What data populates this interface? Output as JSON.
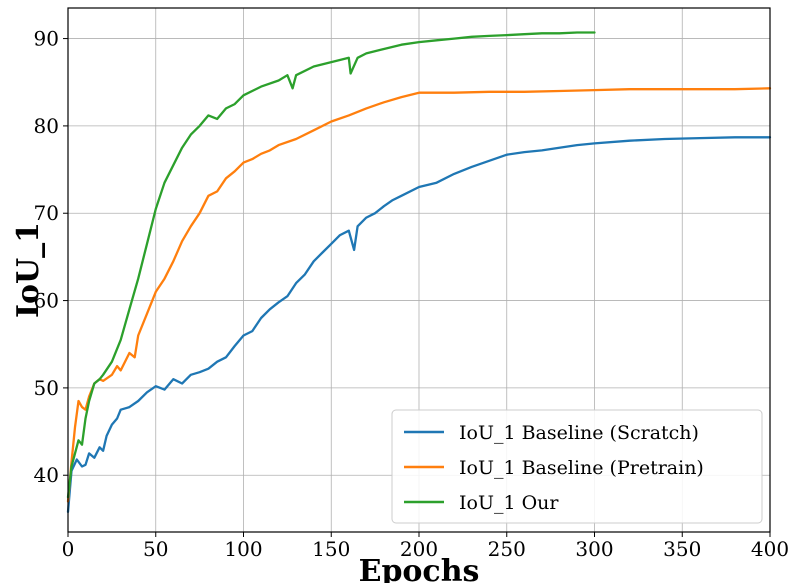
{
  "chart_data": {
    "type": "line",
    "title": "",
    "xlabel": "Epochs",
    "ylabel": "IoU_1",
    "xlim": [
      0,
      400
    ],
    "ylim": [
      33.5,
      93.5
    ],
    "xticks": [
      0,
      50,
      100,
      150,
      200,
      250,
      300,
      350,
      400
    ],
    "yticks": [
      40,
      50,
      60,
      70,
      80,
      90
    ],
    "grid": true,
    "legend_position": "lower-right",
    "series": [
      {
        "name": "IoU_1 Baseline (Scratch)",
        "color": "#1f77b4",
        "x": [
          0,
          2,
          5,
          8,
          10,
          12,
          15,
          18,
          20,
          22,
          25,
          28,
          30,
          35,
          40,
          45,
          50,
          55,
          60,
          65,
          70,
          75,
          80,
          85,
          90,
          95,
          100,
          105,
          110,
          115,
          120,
          125,
          130,
          135,
          140,
          145,
          150,
          155,
          160,
          163,
          165,
          170,
          175,
          180,
          185,
          190,
          200,
          210,
          220,
          230,
          240,
          250,
          260,
          270,
          280,
          290,
          300,
          320,
          340,
          360,
          380,
          400
        ],
        "y": [
          35.8,
          40.5,
          41.8,
          41.0,
          41.2,
          42.5,
          42.0,
          43.2,
          42.8,
          44.5,
          45.8,
          46.5,
          47.5,
          47.8,
          48.5,
          49.5,
          50.2,
          49.8,
          51.0,
          50.5,
          51.5,
          51.8,
          52.2,
          53.0,
          53.5,
          54.8,
          56.0,
          56.5,
          58.0,
          59.0,
          59.8,
          60.5,
          62.0,
          63.0,
          64.5,
          65.5,
          66.5,
          67.5,
          68.0,
          65.8,
          68.5,
          69.5,
          70.0,
          70.8,
          71.5,
          72.0,
          73.0,
          73.5,
          74.5,
          75.3,
          76.0,
          76.7,
          77.0,
          77.2,
          77.5,
          77.8,
          78.0,
          78.3,
          78.5,
          78.6,
          78.7,
          78.7
        ]
      },
      {
        "name": "IoU_1 Baseline (Pretrain)",
        "color": "#ff7f0e",
        "x": [
          0,
          2,
          4,
          6,
          8,
          10,
          12,
          15,
          18,
          20,
          25,
          28,
          30,
          35,
          38,
          40,
          45,
          50,
          55,
          60,
          65,
          70,
          75,
          80,
          85,
          90,
          95,
          100,
          105,
          110,
          115,
          120,
          130,
          140,
          150,
          160,
          170,
          180,
          190,
          200,
          220,
          240,
          260,
          280,
          300,
          320,
          340,
          360,
          380,
          400
        ],
        "y": [
          37.0,
          41.5,
          45.5,
          48.5,
          47.8,
          47.5,
          49.0,
          50.5,
          51.0,
          50.8,
          51.5,
          52.5,
          52.0,
          54.0,
          53.5,
          56.0,
          58.5,
          61.0,
          62.5,
          64.5,
          66.8,
          68.5,
          70.0,
          72.0,
          72.5,
          74.0,
          74.8,
          75.8,
          76.2,
          76.8,
          77.2,
          77.8,
          78.5,
          79.5,
          80.5,
          81.2,
          82.0,
          82.7,
          83.3,
          83.8,
          83.8,
          83.9,
          83.9,
          84.0,
          84.1,
          84.2,
          84.2,
          84.2,
          84.2,
          84.3
        ]
      },
      {
        "name": "IoU_1 Our",
        "color": "#2ca02c",
        "x": [
          0,
          2,
          4,
          6,
          8,
          10,
          12,
          15,
          18,
          20,
          25,
          30,
          35,
          40,
          45,
          50,
          55,
          60,
          65,
          70,
          75,
          80,
          85,
          90,
          95,
          100,
          110,
          120,
          125,
          128,
          130,
          140,
          150,
          160,
          161,
          165,
          170,
          180,
          190,
          200,
          210,
          220,
          230,
          240,
          250,
          260,
          270,
          280,
          290,
          300
        ],
        "y": [
          37.5,
          41.0,
          42.5,
          44.0,
          43.5,
          46.5,
          48.5,
          50.5,
          51.0,
          51.5,
          53.0,
          55.5,
          59.0,
          62.5,
          66.5,
          70.5,
          73.5,
          75.5,
          77.5,
          79.0,
          80.0,
          81.2,
          80.8,
          82.0,
          82.5,
          83.5,
          84.5,
          85.2,
          85.8,
          84.3,
          85.8,
          86.8,
          87.3,
          87.8,
          86.0,
          87.8,
          88.3,
          88.8,
          89.3,
          89.6,
          89.8,
          90.0,
          90.2,
          90.3,
          90.4,
          90.5,
          90.6,
          90.6,
          90.7,
          90.7
        ]
      }
    ]
  }
}
